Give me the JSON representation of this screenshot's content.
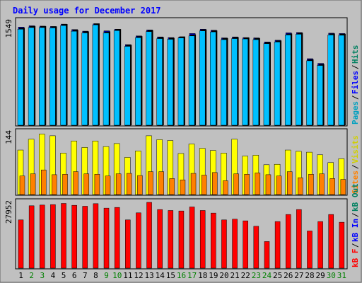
{
  "chart_data": [
    {
      "type": "bar",
      "title": "Daily usage for December 2017",
      "max_label": "1549",
      "side_labels": [
        {
          "text": "Pages",
          "color": "#00a0c0"
        },
        {
          "text": "Files",
          "color": "#0000ff"
        },
        {
          "text": "Hits",
          "color": "#008060"
        }
      ],
      "categories": [
        "1",
        "2",
        "3",
        "4",
        "5",
        "6",
        "7",
        "8",
        "9",
        "10",
        "11",
        "12",
        "13",
        "14",
        "15",
        "16",
        "17",
        "18",
        "19",
        "20",
        "21",
        "22",
        "23",
        "24",
        "25",
        "26",
        "27",
        "28",
        "29",
        "30",
        "31"
      ],
      "weekend_days": [
        "2",
        "3",
        "9",
        "10",
        "16",
        "17",
        "23",
        "24",
        "30",
        "31"
      ],
      "ylim": [
        0,
        1549
      ],
      "series": [
        {
          "name": "Hits",
          "color": "#008060",
          "values": [
            1460,
            1480,
            1475,
            1470,
            1505,
            1425,
            1400,
            1510,
            1405,
            1430,
            1200,
            1330,
            1420,
            1315,
            1305,
            1315,
            1365,
            1430,
            1415,
            1300,
            1315,
            1305,
            1300,
            1240,
            1265,
            1375,
            1380,
            990,
            920,
            1370,
            1365
          ]
        },
        {
          "name": "Files",
          "color": "#0000ff",
          "values": [
            1460,
            1480,
            1475,
            1470,
            1505,
            1425,
            1400,
            1510,
            1405,
            1430,
            1200,
            1330,
            1420,
            1315,
            1305,
            1315,
            1365,
            1430,
            1415,
            1300,
            1315,
            1305,
            1300,
            1240,
            1265,
            1375,
            1380,
            990,
            920,
            1370,
            1365
          ]
        },
        {
          "name": "Pages",
          "color": "#00c0ff",
          "values": [
            1430,
            1455,
            1455,
            1450,
            1485,
            1400,
            1375,
            1495,
            1375,
            1410,
            1175,
            1305,
            1395,
            1290,
            1280,
            1300,
            1330,
            1405,
            1390,
            1275,
            1290,
            1285,
            1275,
            1215,
            1240,
            1345,
            1355,
            960,
            890,
            1345,
            1340
          ]
        }
      ]
    },
    {
      "type": "bar",
      "max_label": "144",
      "side_labels": [
        {
          "text": "Sites",
          "color": "#ff8000"
        },
        {
          "text": "Visits",
          "color": "#d0d000"
        }
      ],
      "categories": [
        "1",
        "2",
        "3",
        "4",
        "5",
        "6",
        "7",
        "8",
        "9",
        "10",
        "11",
        "12",
        "13",
        "14",
        "15",
        "16",
        "17",
        "18",
        "19",
        "20",
        "21",
        "22",
        "23",
        "24",
        "25",
        "26",
        "27",
        "28",
        "29",
        "30",
        "31"
      ],
      "ylim": [
        0,
        144
      ],
      "series": [
        {
          "name": "Visits",
          "color": "#ffff00",
          "values": [
            103,
            128,
            140,
            136,
            96,
            124,
            109,
            124,
            111,
            118,
            86,
            101,
            136,
            127,
            125,
            95,
            117,
            107,
            102,
            96,
            128,
            89,
            91,
            69,
            70,
            103,
            100,
            98,
            92,
            74,
            83
          ]
        },
        {
          "name": "Sites",
          "color": "#ff8000",
          "values": [
            43,
            48,
            57,
            46,
            47,
            53,
            48,
            47,
            43,
            48,
            49,
            44,
            53,
            53,
            37,
            34,
            49,
            45,
            51,
            32,
            48,
            47,
            50,
            46,
            43,
            53,
            39,
            47,
            48,
            37,
            35
          ]
        }
      ]
    },
    {
      "type": "bar",
      "max_label": "27952",
      "side_labels": [
        {
          "text": "kB F",
          "color": "#ff0000"
        },
        {
          "text": "kB In",
          "color": "#0000ff"
        },
        {
          "text": "kB Out",
          "color": "#008060"
        }
      ],
      "categories": [
        "1",
        "2",
        "3",
        "4",
        "5",
        "6",
        "7",
        "8",
        "9",
        "10",
        "11",
        "12",
        "13",
        "14",
        "15",
        "16",
        "17",
        "18",
        "19",
        "20",
        "21",
        "22",
        "23",
        "24",
        "25",
        "26",
        "27",
        "28",
        "29",
        "30",
        "31"
      ],
      "ylim": [
        0,
        27952
      ],
      "series": [
        {
          "name": "kB F",
          "color": "#ff0000",
          "values": [
            20500,
            26500,
            26800,
            27000,
            27500,
            26700,
            26300,
            27400,
            25500,
            25800,
            20500,
            23500,
            27952,
            24900,
            24500,
            24300,
            26000,
            24500,
            23400,
            20500,
            20800,
            20100,
            17800,
            11300,
            19800,
            22800,
            24900,
            15800,
            19800,
            22800,
            19500
          ]
        }
      ]
    }
  ]
}
